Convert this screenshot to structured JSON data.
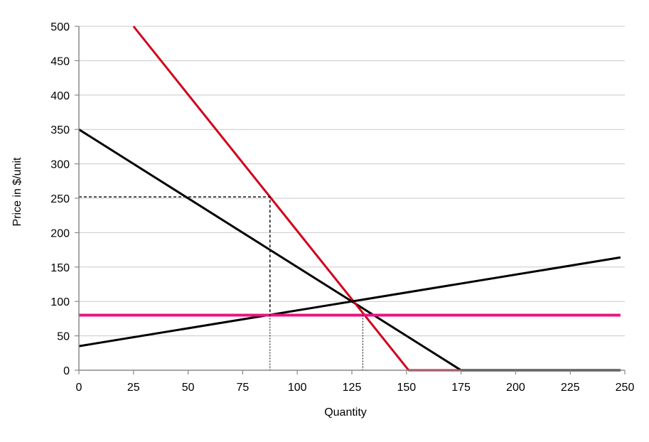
{
  "chart_data": {
    "type": "line",
    "title": "",
    "xlabel": "Quantity",
    "ylabel": "Price in $/unit",
    "xlim": [
      0,
      250
    ],
    "ylim": [
      0,
      500
    ],
    "x_ticks": [
      0,
      25,
      50,
      75,
      100,
      125,
      150,
      175,
      200,
      225,
      250
    ],
    "y_ticks": [
      0,
      50,
      100,
      150,
      200,
      250,
      300,
      350,
      400,
      450,
      500
    ],
    "grid": "horizontal",
    "series": [
      {
        "color": "#000000",
        "points": [
          [
            0,
            350
          ],
          [
            175,
            0
          ],
          [
            248,
            0
          ]
        ]
      },
      {
        "color": "#d0021b",
        "points": [
          [
            25,
            500
          ],
          [
            151,
            0
          ],
          [
            175,
            0
          ]
        ]
      },
      {
        "color": "#000000",
        "points": [
          [
            0,
            35
          ],
          [
            248,
            164
          ]
        ]
      },
      {
        "color": "#e8157f",
        "points": [
          [
            0,
            80
          ],
          [
            248,
            80
          ]
        ]
      }
    ],
    "guides": [
      {
        "style": "dashed",
        "points": [
          [
            0,
            252
          ],
          [
            87.5,
            252
          ],
          [
            87.5,
            80
          ]
        ]
      },
      {
        "style": "dotted",
        "points": [
          [
            87.5,
            80
          ],
          [
            87.5,
            0
          ]
        ]
      },
      {
        "style": "dotted",
        "points": [
          [
            130,
            80
          ],
          [
            130,
            0
          ]
        ]
      }
    ]
  }
}
